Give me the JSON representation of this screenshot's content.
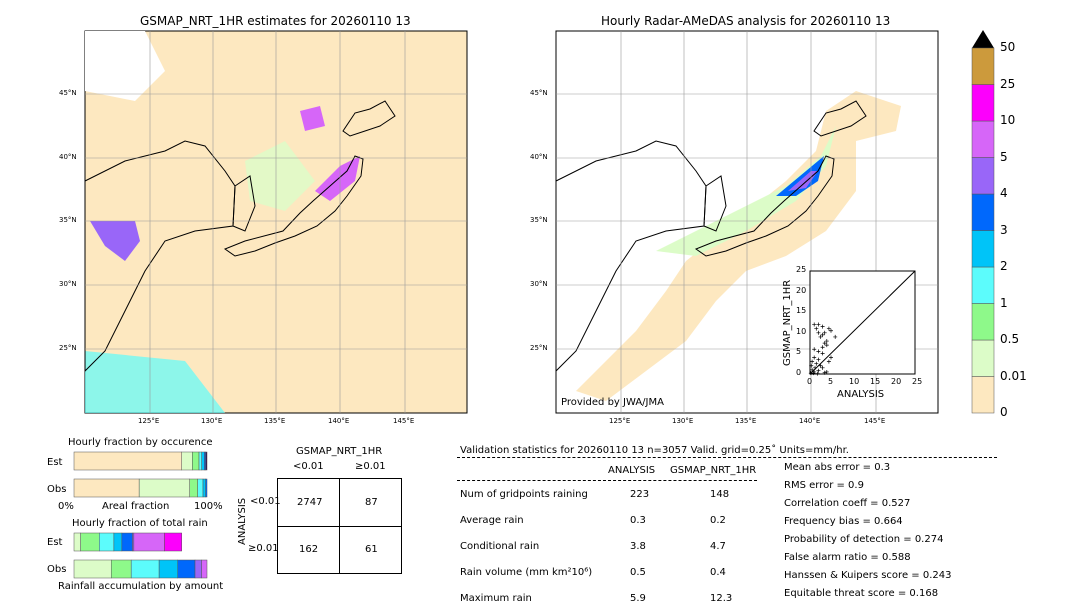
{
  "colors": {
    "c0": "#fde8c0",
    "c001": "#dcfcc8",
    "c05": "#8ef98a",
    "c1": "#5cfcfc",
    "c2": "#00c4f8",
    "c3": "#0068fc",
    "c4": "#9966f8",
    "c5": "#d666f8",
    "c10": "#fc00fc",
    "c25": "#cc9a3c"
  },
  "chart_data": [
    {
      "type": "heatmap",
      "title": "GSMAP_NRT_1HR estimates for 20260110 13",
      "xticks": [
        "125°E",
        "130°E",
        "135°E",
        "140°E",
        "145°E"
      ],
      "yticks": [
        "45°N",
        "40°N",
        "35°N",
        "30°N",
        "25°N"
      ],
      "xlim": [
        120,
        150
      ],
      "ylim": [
        20,
        50
      ]
    },
    {
      "type": "heatmap",
      "title": "Hourly Radar-AMeDAS analysis for 20260110 13",
      "xticks": [
        "125°E",
        "130°E",
        "135°E",
        "140°E",
        "145°E"
      ],
      "yticks": [
        "45°N",
        "40°N",
        "35°N",
        "30°N",
        "25°N"
      ],
      "xlim": [
        120,
        150
      ],
      "ylim": [
        20,
        50
      ],
      "annotation": "Provided by JWA/JMA"
    },
    {
      "type": "scatter",
      "xlabel": "ANALYSIS",
      "ylabel": "GSMAP_NRT_1HR",
      "xlim": [
        0,
        25
      ],
      "ylim": [
        0,
        25
      ],
      "ticks": [
        "0",
        "5",
        "10",
        "15",
        "20",
        "25"
      ],
      "points": [
        [
          1,
          12
        ],
        [
          2,
          12
        ],
        [
          1.5,
          11
        ],
        [
          3,
          11.5
        ],
        [
          4.5,
          11
        ],
        [
          5,
          10.5
        ],
        [
          2,
          10
        ],
        [
          3.5,
          10
        ],
        [
          2.5,
          9
        ],
        [
          3,
          9.5
        ],
        [
          6,
          9
        ],
        [
          4,
          8
        ],
        [
          3.5,
          7.5
        ],
        [
          4,
          7
        ],
        [
          3,
          6.5
        ],
        [
          1,
          6
        ],
        [
          2,
          5.5
        ],
        [
          3,
          5
        ],
        [
          5,
          4
        ],
        [
          4.5,
          3
        ],
        [
          1,
          4
        ],
        [
          2,
          3.5
        ],
        [
          0.5,
          3
        ],
        [
          1.5,
          2.5
        ],
        [
          2.5,
          2
        ],
        [
          3,
          1.5
        ],
        [
          0.5,
          1
        ],
        [
          1,
          0.5
        ],
        [
          2,
          0.8
        ],
        [
          0.3,
          2
        ],
        [
          1.2,
          1.5
        ],
        [
          4,
          0.5
        ],
        [
          3.5,
          0.3
        ],
        [
          0.2,
          0.2
        ],
        [
          0.8,
          0.2
        ],
        [
          1.8,
          0.1
        ]
      ]
    },
    {
      "type": "bar",
      "title": "Hourly fraction by occurence",
      "xlabel": "Areal fraction",
      "xticks": [
        "0%",
        "100%"
      ],
      "categories": [
        "Est",
        "Obs"
      ],
      "series": {
        "Est": [
          0.81,
          0.08,
          0.05,
          0.02,
          0.02,
          0.01,
          0.01
        ],
        "Obs": [
          0.49,
          0.38,
          0.06,
          0.04,
          0.02,
          0.01,
          0
        ]
      }
    },
    {
      "type": "bar",
      "title": "Hourly fraction of total rain",
      "xlabel": "Rainfall accumulation by amount",
      "categories": [
        "Est",
        "Obs"
      ],
      "series": {
        "Est": [
          0.05,
          0.14,
          0.11,
          0.06,
          0.08,
          0.01,
          0.23,
          0.13
        ],
        "Obs": [
          0.28,
          0.15,
          0.21,
          0.14,
          0.13,
          0.05,
          0.04,
          0
        ]
      }
    },
    {
      "type": "table",
      "title": "GSMAP_NRT_1HR",
      "col_headers": [
        "<0.01",
        "≥0.01"
      ],
      "row_label": "ANALYSIS",
      "row_headers": [
        "<0.01",
        "≥0.01"
      ],
      "cells": [
        [
          "2747",
          "87"
        ],
        [
          "162",
          "61"
        ]
      ]
    }
  ],
  "colorbar": {
    "labels": [
      "0",
      "0.01",
      "0.5",
      "1",
      "2",
      "3",
      "4",
      "5",
      "10",
      "25",
      "50"
    ]
  },
  "stats": {
    "header": "Validation statistics for 20260110 13  n=3057 Valid. grid=0.25˚ Units=mm/hr.",
    "col1": "ANALYSIS",
    "col2": "GSMAP_NRT_1HR",
    "rows": [
      {
        "label": "Num of gridpoints raining",
        "a": "223",
        "g": "148"
      },
      {
        "label": "Average rain",
        "a": "0.3",
        "g": "0.2"
      },
      {
        "label": "Conditional rain",
        "a": "3.8",
        "g": "4.7"
      },
      {
        "label": "Rain volume (mm km²10⁶)",
        "a": "0.5",
        "g": "0.4"
      },
      {
        "label": "Maximum rain",
        "a": "5.9",
        "g": "12.3"
      }
    ],
    "scores": [
      "Mean abs error =    0.3",
      "RMS error =    0.9",
      "Correlation coeff =  0.527",
      "Frequency bias =  0.664",
      "Probability of detection =  0.274",
      "False alarm ratio =  0.588",
      "Hanssen & Kuipers score =  0.243",
      "Equitable threat score =  0.168"
    ]
  }
}
